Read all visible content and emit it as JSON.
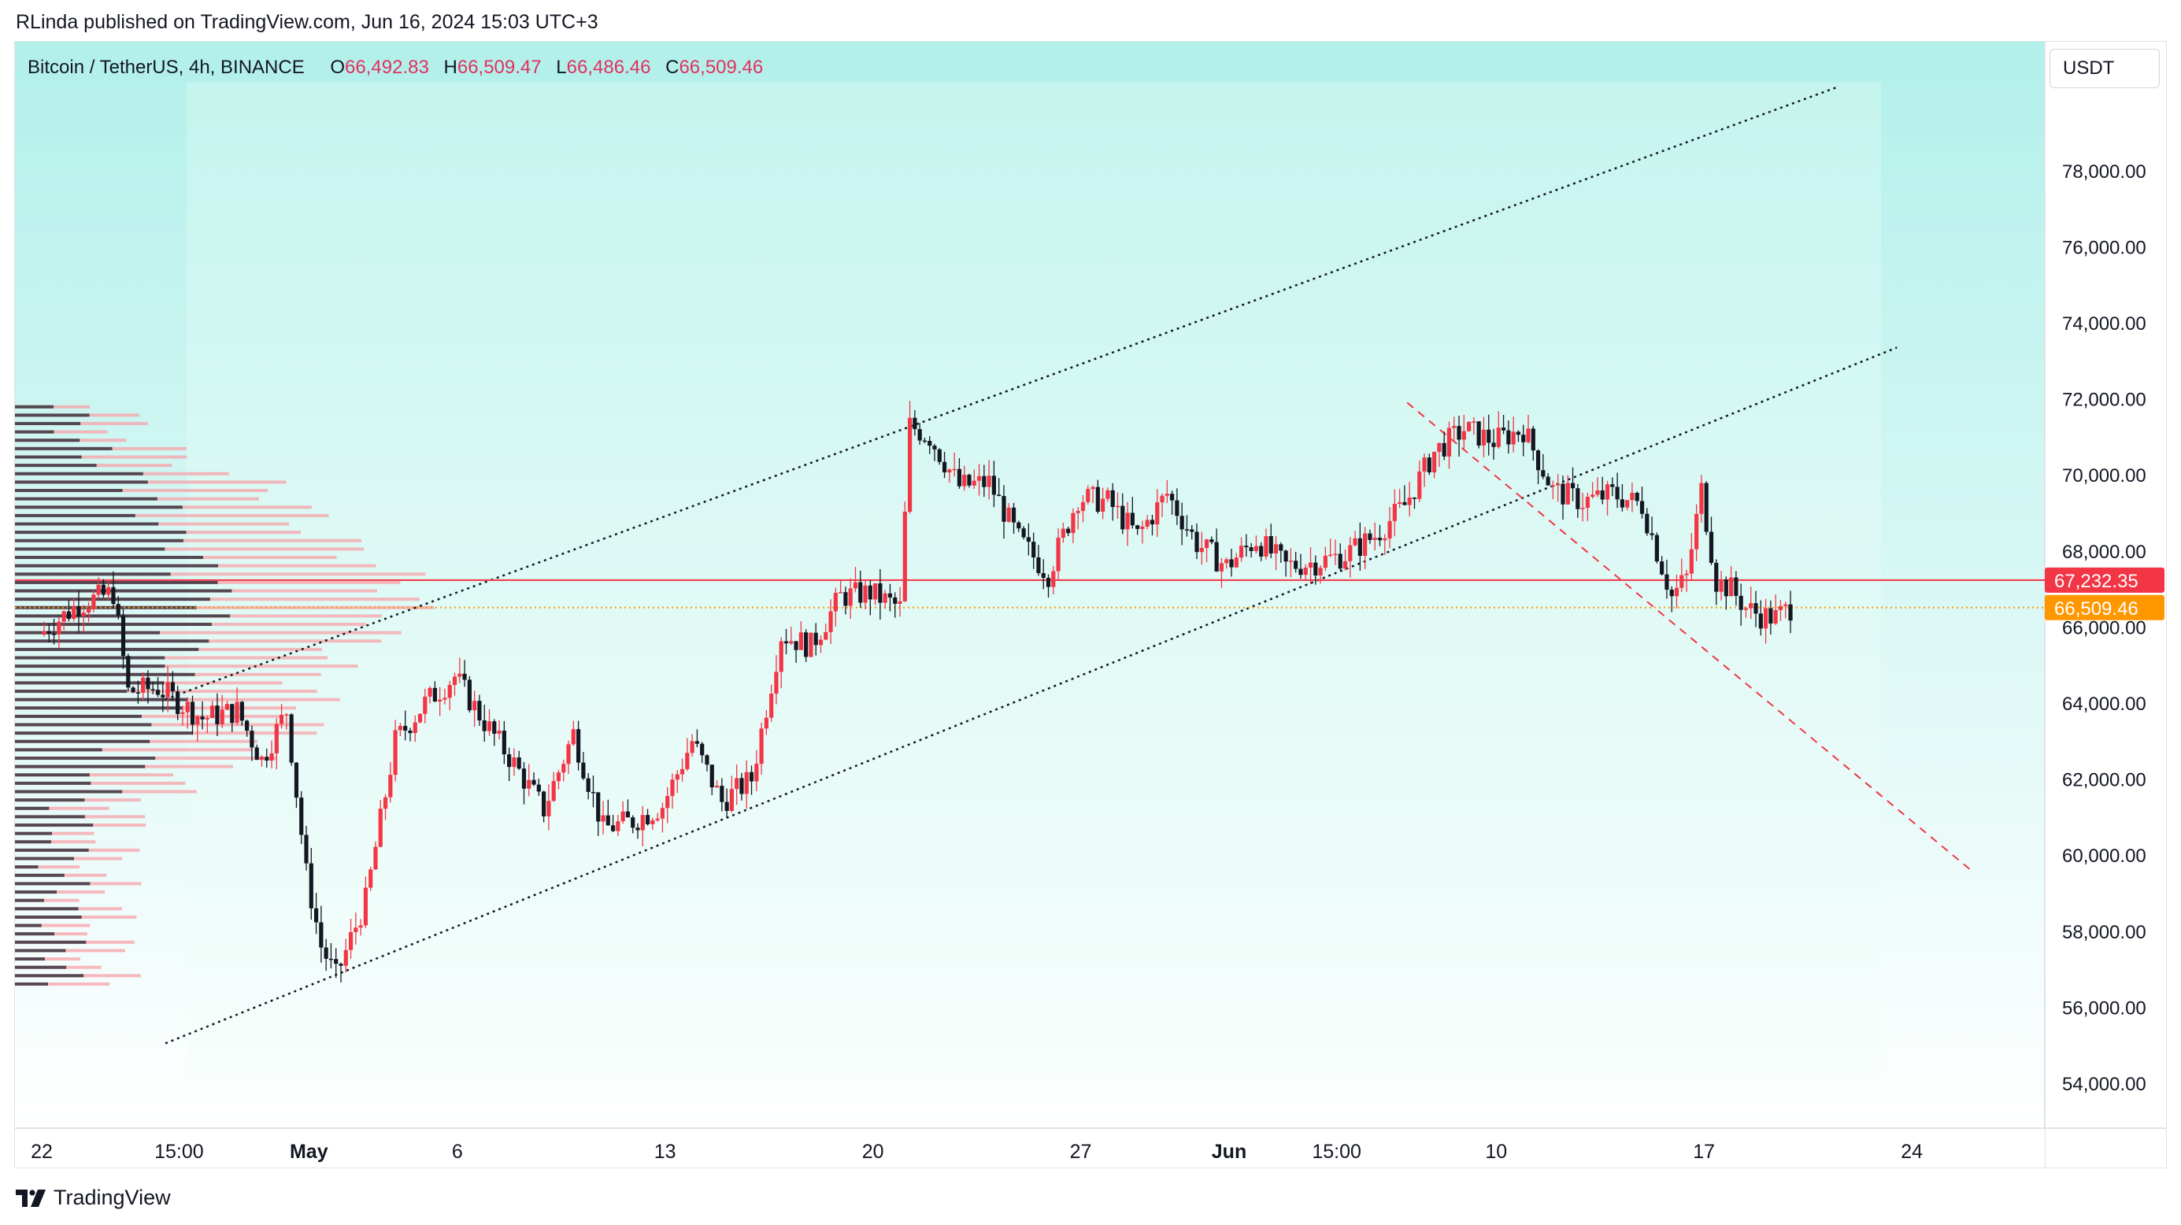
{
  "header": {
    "published_text": "RLinda published on TradingView.com, Jun 16, 2024 15:03 UTC+3"
  },
  "legend": {
    "symbol": "Bitcoin / TetherUS, 4h, BINANCE",
    "open_label": "O",
    "open_value": "66,492.83",
    "high_label": "H",
    "high_value": "66,509.47",
    "low_label": "L",
    "low_value": "66,486.46",
    "close_label": "C",
    "close_value": "66,509.46"
  },
  "currency_label": "USDT",
  "footer": {
    "brand": "TradingView"
  },
  "colors": {
    "up": "#f23645",
    "down": "#131722",
    "bg_top": "#b2f0ea",
    "bg_bottom": "#ffffff",
    "level_line": "#f23645",
    "last_price": "#ff9800",
    "channel": "#131722"
  },
  "chart_data": {
    "type": "candlestick",
    "symbol": "BTCUSDT",
    "timeframe": "4h",
    "ylim": [
      52500,
      80000
    ],
    "y_ticks": [
      54000,
      56000,
      58000,
      60000,
      62000,
      64000,
      66000,
      68000,
      70000,
      72000,
      74000,
      76000,
      78000
    ],
    "y_tick_labels": [
      "54,000.00",
      "56,000.00",
      "58,000.00",
      "60,000.00",
      "62,000.00",
      "64,000.00",
      "66,000.00",
      "68,000.00",
      "70,000.00",
      "72,000.00",
      "74,000.00",
      "76,000.00",
      "78,000.00"
    ],
    "x_ticks": [
      {
        "label": "22",
        "bold": false,
        "time": "2024-04-22"
      },
      {
        "label": "15:00",
        "bold": false,
        "time": "2024-04-26 15:00"
      },
      {
        "label": "May",
        "bold": true,
        "time": "2024-05-01"
      },
      {
        "label": "6",
        "bold": false,
        "time": "2024-05-06"
      },
      {
        "label": "13",
        "bold": false,
        "time": "2024-05-13"
      },
      {
        "label": "20",
        "bold": false,
        "time": "2024-05-20"
      },
      {
        "label": "27",
        "bold": false,
        "time": "2024-05-27"
      },
      {
        "label": "Jun",
        "bold": true,
        "time": "2024-06-01"
      },
      {
        "label": "15:00",
        "bold": false,
        "time": "2024-06-04 15:00"
      },
      {
        "label": "10",
        "bold": false,
        "time": "2024-06-10"
      },
      {
        "label": "17",
        "bold": false,
        "time": "2024-06-17"
      },
      {
        "label": "24",
        "bold": false,
        "time": "2024-06-24"
      }
    ],
    "price_path": [
      [
        "2024-04-22 00:00",
        65800
      ],
      [
        "2024-04-23 08:00",
        66600
      ],
      [
        "2024-04-24 12:00",
        66900
      ],
      [
        "2024-04-25 00:00",
        64300
      ],
      [
        "2024-04-26 00:00",
        64400
      ],
      [
        "2024-04-27 12:00",
        63600
      ],
      [
        "2024-04-28 16:00",
        63800
      ],
      [
        "2024-04-29 12:00",
        62500
      ],
      [
        "2024-04-30 08:00",
        63800
      ],
      [
        "2024-05-01 00:00",
        59500
      ],
      [
        "2024-05-01 12:00",
        57600
      ],
      [
        "2024-05-02 00:00",
        56800
      ],
      [
        "2024-05-03 00:00",
        58800
      ],
      [
        "2024-05-04 00:00",
        63000
      ],
      [
        "2024-05-05 00:00",
        64000
      ],
      [
        "2024-05-06 00:00",
        64700
      ],
      [
        "2024-05-07 00:00",
        63500
      ],
      [
        "2024-05-08 00:00",
        62400
      ],
      [
        "2024-05-09 00:00",
        61200
      ],
      [
        "2024-05-10 00:00",
        63200
      ],
      [
        "2024-05-11 00:00",
        60700
      ],
      [
        "2024-05-12 00:00",
        60900
      ],
      [
        "2024-05-13 00:00",
        61300
      ],
      [
        "2024-05-14 00:00",
        63000
      ],
      [
        "2024-05-15 00:00",
        61400
      ],
      [
        "2024-05-16 00:00",
        62000
      ],
      [
        "2024-05-17 00:00",
        65800
      ],
      [
        "2024-05-18 00:00",
        65500
      ],
      [
        "2024-05-19 00:00",
        66800
      ],
      [
        "2024-05-20 00:00",
        66900
      ],
      [
        "2024-05-21 00:00",
        66500
      ],
      [
        "2024-05-21 08:00",
        71300
      ],
      [
        "2024-05-22 00:00",
        71000
      ],
      [
        "2024-05-23 00:00",
        69700
      ],
      [
        "2024-05-24 00:00",
        69800
      ],
      [
        "2024-05-25 00:00",
        68300
      ],
      [
        "2024-05-26 00:00",
        67400
      ],
      [
        "2024-05-27 00:00",
        69400
      ],
      [
        "2024-05-28 00:00",
        69300
      ],
      [
        "2024-05-29 00:00",
        68400
      ],
      [
        "2024-05-30 00:00",
        69500
      ],
      [
        "2024-05-31 00:00",
        68200
      ],
      [
        "2024-06-01 00:00",
        67600
      ],
      [
        "2024-06-02 00:00",
        68300
      ],
      [
        "2024-06-03 00:00",
        67600
      ],
      [
        "2024-06-04 00:00",
        67700
      ],
      [
        "2024-06-05 00:00",
        67900
      ],
      [
        "2024-06-06 00:00",
        68400
      ],
      [
        "2024-06-07 00:00",
        69200
      ],
      [
        "2024-06-08 00:00",
        70600
      ],
      [
        "2024-06-09 00:00",
        71200
      ],
      [
        "2024-06-10 00:00",
        70900
      ],
      [
        "2024-06-11 00:00",
        71200
      ],
      [
        "2024-06-12 00:00",
        69600
      ],
      [
        "2024-06-13 00:00",
        69300
      ],
      [
        "2024-06-14 00:00",
        69500
      ],
      [
        "2024-06-15 00:00",
        69200
      ],
      [
        "2024-06-16 00:00",
        66800
      ],
      [
        "2024-06-16 12:00",
        67300
      ],
      [
        "2024-06-17 00:00",
        69600
      ],
      [
        "2024-06-17 12:00",
        67200
      ],
      [
        "2024-06-18 00:00",
        67000
      ],
      [
        "2024-06-18 12:00",
        66500
      ],
      [
        "2024-06-19 00:00",
        66300
      ],
      [
        "2024-06-19 12:00",
        66250
      ],
      [
        "2024-06-20 00:00",
        66509
      ]
    ],
    "drawings": {
      "channel_upper": {
        "from": [
          "2024-04-26 04:00",
          64100
        ],
        "to": [
          "2024-06-21 12:00",
          80200
        ]
      },
      "channel_lower": {
        "from": [
          "2024-04-26 04:00",
          55050
        ],
        "to": [
          "2024-06-23 12:00",
          73350
        ]
      },
      "downtrend_dashed": {
        "from": [
          "2024-06-07 00:00",
          71900
        ],
        "to": [
          "2024-06-26 00:00",
          59600
        ]
      },
      "horizontal_level": {
        "price": 67232.35,
        "label": "67,232.35"
      },
      "last_price": {
        "price": 66509.46,
        "label": "66,509.46"
      }
    },
    "volume_profile": {
      "price_range": [
        56500,
        71900
      ],
      "rows": 70,
      "max_width_ratio": 0.2
    }
  }
}
